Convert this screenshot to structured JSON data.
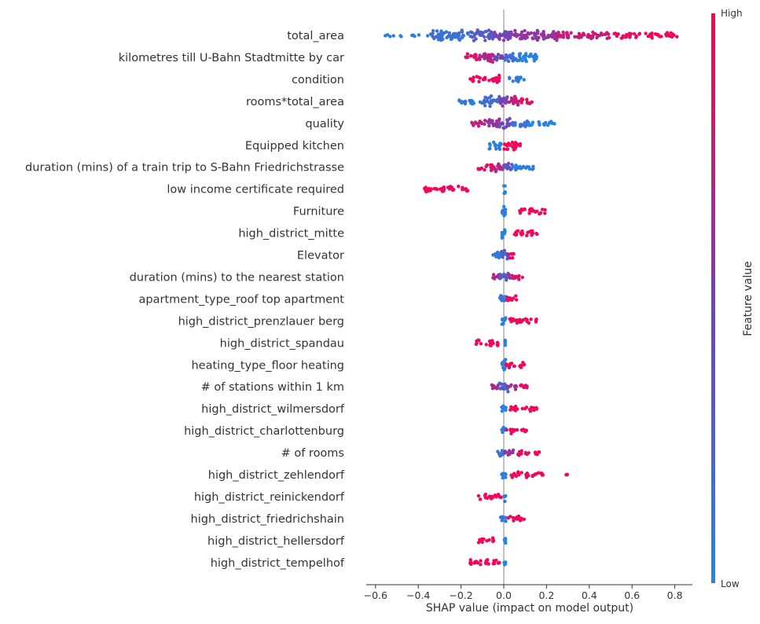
{
  "chart_data": {
    "type": "scatter",
    "subtype": "shap-beeswarm",
    "xlabel": "SHAP value (impact on model output)",
    "xlim": [
      -0.63,
      0.87
    ],
    "xticks": [
      -0.6,
      -0.4,
      -0.2,
      0.0,
      0.2,
      0.4,
      0.6,
      0.8
    ],
    "xtick_labels": [
      "−0.6",
      "−0.4",
      "−0.2",
      "0.0",
      "0.2",
      "0.4",
      "0.6",
      "0.8"
    ],
    "zero_line": true,
    "colorbar": {
      "title": "Feature value",
      "high_label": "High",
      "low_label": "Low",
      "low_color": "#1e88e5",
      "high_color": "#ff0052"
    },
    "features": [
      {
        "name": "total_area",
        "clusters": [
          [
            -0.58,
            -0.35,
            0.05,
            0.1
          ],
          [
            -0.35,
            -0.15,
            0.15,
            0.9
          ],
          [
            -0.15,
            -0.05,
            0.3,
            1.0
          ],
          [
            -0.05,
            0.05,
            0.45,
            0.8
          ],
          [
            0.05,
            0.25,
            0.6,
            0.8
          ],
          [
            0.25,
            0.5,
            0.78,
            0.55
          ],
          [
            0.5,
            0.7,
            0.92,
            0.35
          ],
          [
            0.7,
            0.82,
            0.98,
            0.35
          ]
        ]
      },
      {
        "name": "kilometres till U-Bahn Stadtmitte by car",
        "clusters": [
          [
            -0.18,
            -0.12,
            0.9,
            0.45
          ],
          [
            -0.12,
            -0.05,
            0.72,
            1.0
          ],
          [
            -0.05,
            0.0,
            0.45,
            0.5
          ],
          [
            0.0,
            0.06,
            0.18,
            0.8
          ],
          [
            0.06,
            0.16,
            0.05,
            0.7
          ]
        ]
      },
      {
        "name": "condition",
        "clusters": [
          [
            -0.16,
            -0.06,
            0.96,
            0.35
          ],
          [
            -0.06,
            -0.02,
            0.93,
            0.9
          ],
          [
            0.02,
            0.1,
            0.05,
            0.4
          ]
        ]
      },
      {
        "name": "rooms*total_area",
        "clusters": [
          [
            -0.21,
            -0.1,
            0.1,
            0.35
          ],
          [
            -0.1,
            -0.02,
            0.2,
            0.8
          ],
          [
            -0.02,
            0.02,
            0.5,
            0.9
          ],
          [
            0.02,
            0.08,
            0.75,
            0.7
          ],
          [
            0.08,
            0.14,
            0.9,
            0.35
          ]
        ]
      },
      {
        "name": "quality",
        "clusters": [
          [
            -0.15,
            -0.08,
            0.75,
            0.4
          ],
          [
            -0.08,
            -0.02,
            0.6,
            0.8
          ],
          [
            -0.02,
            0.03,
            0.4,
            0.9
          ],
          [
            0.03,
            0.12,
            0.15,
            0.55
          ],
          [
            0.12,
            0.24,
            0.05,
            0.3
          ]
        ]
      },
      {
        "name": "Equipped kitchen",
        "clusters": [
          [
            -0.07,
            -0.01,
            0.05,
            0.7
          ],
          [
            0.0,
            0.06,
            0.95,
            0.85
          ],
          [
            0.06,
            0.09,
            0.95,
            0.3
          ]
        ]
      },
      {
        "name": "duration (mins) of a train trip to S-Bahn Friedrichstrasse",
        "clusters": [
          [
            -0.12,
            -0.05,
            0.92,
            0.45
          ],
          [
            -0.05,
            0.0,
            0.7,
            0.7
          ],
          [
            0.0,
            0.04,
            0.35,
            0.9
          ],
          [
            0.04,
            0.14,
            0.08,
            0.45
          ]
        ]
      },
      {
        "name": "low income certificate required",
        "clusters": [
          [
            -0.38,
            -0.33,
            0.97,
            0.45
          ],
          [
            -0.33,
            -0.16,
            0.95,
            0.38
          ],
          [
            0.0,
            0.01,
            0.05,
            0.8
          ]
        ]
      },
      {
        "name": "Furniture",
        "clusters": [
          [
            -0.01,
            0.01,
            0.05,
            0.8
          ],
          [
            0.07,
            0.2,
            0.95,
            0.45
          ]
        ]
      },
      {
        "name": "high_district_mitte",
        "clusters": [
          [
            -0.01,
            0.01,
            0.05,
            0.8
          ],
          [
            0.05,
            0.16,
            0.95,
            0.45
          ]
        ]
      },
      {
        "name": "Elevator",
        "clusters": [
          [
            -0.06,
            -0.01,
            0.1,
            0.55
          ],
          [
            -0.01,
            0.02,
            0.3,
            0.85
          ],
          [
            0.02,
            0.06,
            0.9,
            0.4
          ]
        ]
      },
      {
        "name": "duration (mins) to the nearest station",
        "clusters": [
          [
            -0.06,
            -0.02,
            0.7,
            0.4
          ],
          [
            -0.02,
            0.02,
            0.3,
            0.95
          ],
          [
            0.02,
            0.05,
            0.7,
            0.5
          ],
          [
            0.05,
            0.09,
            0.85,
            0.35
          ]
        ]
      },
      {
        "name": "apartment_type_roof top apartment",
        "clusters": [
          [
            -0.02,
            0.01,
            0.1,
            0.75
          ],
          [
            0.01,
            0.06,
            0.95,
            0.4
          ]
        ]
      },
      {
        "name": "high_district_prenzlauer berg",
        "clusters": [
          [
            -0.01,
            0.01,
            0.05,
            0.8
          ],
          [
            0.02,
            0.13,
            0.95,
            0.4
          ],
          [
            0.15,
            0.16,
            0.95,
            0.2
          ]
        ]
      },
      {
        "name": "high_district_spandau",
        "clusters": [
          [
            -0.13,
            -0.02,
            0.95,
            0.4
          ],
          [
            0.0,
            0.01,
            0.05,
            0.8
          ]
        ]
      },
      {
        "name": "heating_type_floor heating",
        "clusters": [
          [
            -0.01,
            0.01,
            0.05,
            0.8
          ],
          [
            0.01,
            0.11,
            0.95,
            0.4
          ]
        ]
      },
      {
        "name": "# of stations within 1 km",
        "clusters": [
          [
            -0.06,
            -0.02,
            0.7,
            0.4
          ],
          [
            -0.02,
            0.02,
            0.3,
            0.95
          ],
          [
            0.02,
            0.06,
            0.65,
            0.45
          ],
          [
            0.06,
            0.11,
            0.9,
            0.3
          ]
        ]
      },
      {
        "name": "high_district_wilmersdorf",
        "clusters": [
          [
            -0.01,
            0.01,
            0.05,
            0.8
          ],
          [
            0.03,
            0.16,
            0.95,
            0.42
          ]
        ]
      },
      {
        "name": "high_district_charlottenburg",
        "clusters": [
          [
            -0.01,
            0.01,
            0.05,
            0.8
          ],
          [
            0.01,
            0.11,
            0.95,
            0.4
          ]
        ]
      },
      {
        "name": "# of rooms",
        "clusters": [
          [
            -0.03,
            0.0,
            0.1,
            0.6
          ],
          [
            0.0,
            0.05,
            0.6,
            0.5
          ],
          [
            0.06,
            0.09,
            0.9,
            0.3
          ],
          [
            0.1,
            0.17,
            0.95,
            0.35
          ]
        ]
      },
      {
        "name": "high_district_zehlendorf",
        "clusters": [
          [
            -0.01,
            0.01,
            0.05,
            0.8
          ],
          [
            0.03,
            0.2,
            0.95,
            0.42
          ],
          [
            0.29,
            0.3,
            0.95,
            0.2
          ]
        ]
      },
      {
        "name": "high_district_reinickendorf",
        "clusters": [
          [
            -0.12,
            -0.01,
            0.95,
            0.4
          ],
          [
            0.0,
            0.01,
            0.05,
            0.8
          ]
        ]
      },
      {
        "name": "high_district_friedrichshain",
        "clusters": [
          [
            -0.02,
            0.01,
            0.1,
            0.7
          ],
          [
            0.01,
            0.1,
            0.95,
            0.4
          ]
        ]
      },
      {
        "name": "high_district_hellersdorf",
        "clusters": [
          [
            -0.12,
            -0.04,
            0.95,
            0.38
          ],
          [
            0.0,
            0.01,
            0.05,
            0.8
          ]
        ]
      },
      {
        "name": "high_district_tempelhof",
        "clusters": [
          [
            -0.16,
            -0.01,
            0.95,
            0.42
          ],
          [
            0.0,
            0.01,
            0.05,
            0.8
          ]
        ]
      }
    ]
  }
}
